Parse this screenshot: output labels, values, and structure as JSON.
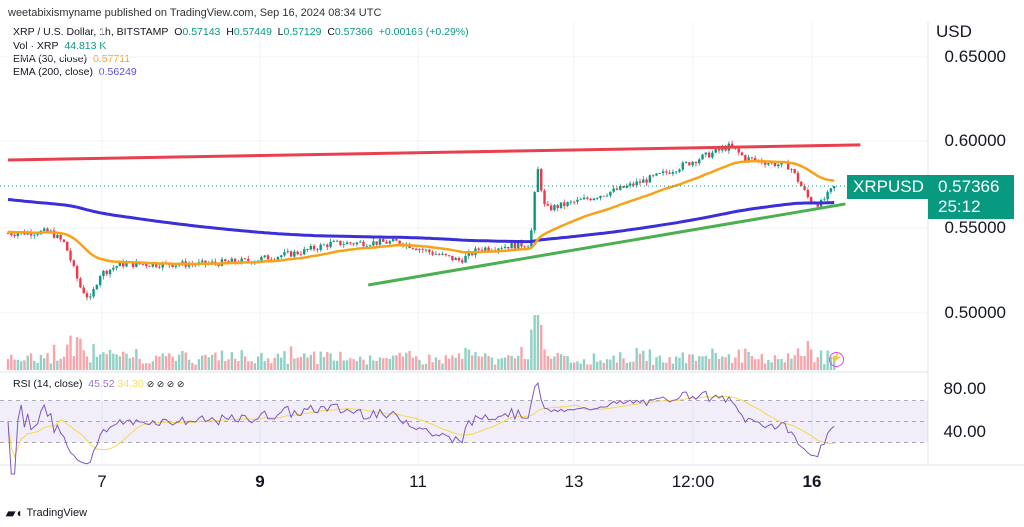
{
  "header": {
    "publisher": "weetabixismyname published on TradingView.com, Sep 16, 2024 08:34 UTC"
  },
  "legend": {
    "symbol": "XRP / U.S. Dollar, 1h, BITSTAMP",
    "o_label": "O",
    "o": "0.57143",
    "h_label": "H",
    "h": "0.57449",
    "l_label": "L",
    "l": "0.57129",
    "c_label": "C",
    "c": "0.57366",
    "change": "+0.00166 (+0.29%)",
    "vol_label": "Vol · XRP",
    "vol": "44.813 K",
    "ema30_label": "EMA (30, close)",
    "ema30": "0.57711",
    "ema200_label": "EMA (200, close)",
    "ema200": "0.56249",
    "rsi_label": "RSI (14, close)",
    "rsi": "45.52",
    "rsi_ma": "34.30",
    "rsi_extra": "⊘ ⊘ ⊘ ⊘"
  },
  "price_axis": {
    "currency": "USD",
    "labels": [
      "0.65000",
      "0.60000",
      "0.55000",
      "0.50000"
    ]
  },
  "rsi_axis": {
    "labels": [
      "80.00",
      "40.00"
    ]
  },
  "time_axis": {
    "labels": [
      "7",
      "9",
      "11",
      "13",
      "12:00",
      "16"
    ]
  },
  "price_tag": {
    "symbol": "XRPUSD",
    "price": "0.57366",
    "countdown": "25:12"
  },
  "watermark": "TradingView",
  "colors": {
    "up": "#089981",
    "down": "#f23645",
    "ema30": "#f7a21b",
    "ema200": "#3b30d8",
    "resistance": "#e8404f",
    "support": "#4caf50",
    "rsi": "#7e57c2"
  },
  "chart_data": {
    "type": "candlestick",
    "title": "XRP / U.S. Dollar, 1h, BITSTAMP",
    "x_unit": "day of September 2024",
    "price_path": [
      [
        5.81,
        0.546
      ],
      [
        6.34,
        0.547
      ],
      [
        6.53,
        0.54
      ],
      [
        6.72,
        0.515
      ],
      [
        6.85,
        0.507
      ],
      [
        6.97,
        0.522
      ],
      [
        7.23,
        0.528
      ],
      [
        8.24,
        0.528
      ],
      [
        8.87,
        0.53
      ],
      [
        9.51,
        0.535
      ],
      [
        9.89,
        0.54
      ],
      [
        10.77,
        0.541
      ],
      [
        11.15,
        0.535
      ],
      [
        11.53,
        0.53
      ],
      [
        11.78,
        0.537
      ],
      [
        12.42,
        0.54
      ],
      [
        12.51,
        0.585
      ],
      [
        12.61,
        0.56
      ],
      [
        13.05,
        0.565
      ],
      [
        13.56,
        0.572
      ],
      [
        14.06,
        0.58
      ],
      [
        14.57,
        0.59
      ],
      [
        14.95,
        0.597
      ],
      [
        15.14,
        0.59
      ],
      [
        15.71,
        0.585
      ],
      [
        15.96,
        0.565
      ],
      [
        16.09,
        0.563
      ],
      [
        16.28,
        0.5737
      ]
    ],
    "resistance_line": [
      [
        5.81,
        0.5889
      ],
      [
        16.6,
        0.5977
      ]
    ],
    "support_line": [
      [
        10.37,
        0.5158
      ],
      [
        16.41,
        0.5632
      ]
    ],
    "ylim": [
      0.475,
      0.665
    ],
    "xticks": [
      7,
      9,
      11,
      13,
      14.5,
      16
    ],
    "rsi_levels": [
      70,
      30
    ]
  }
}
